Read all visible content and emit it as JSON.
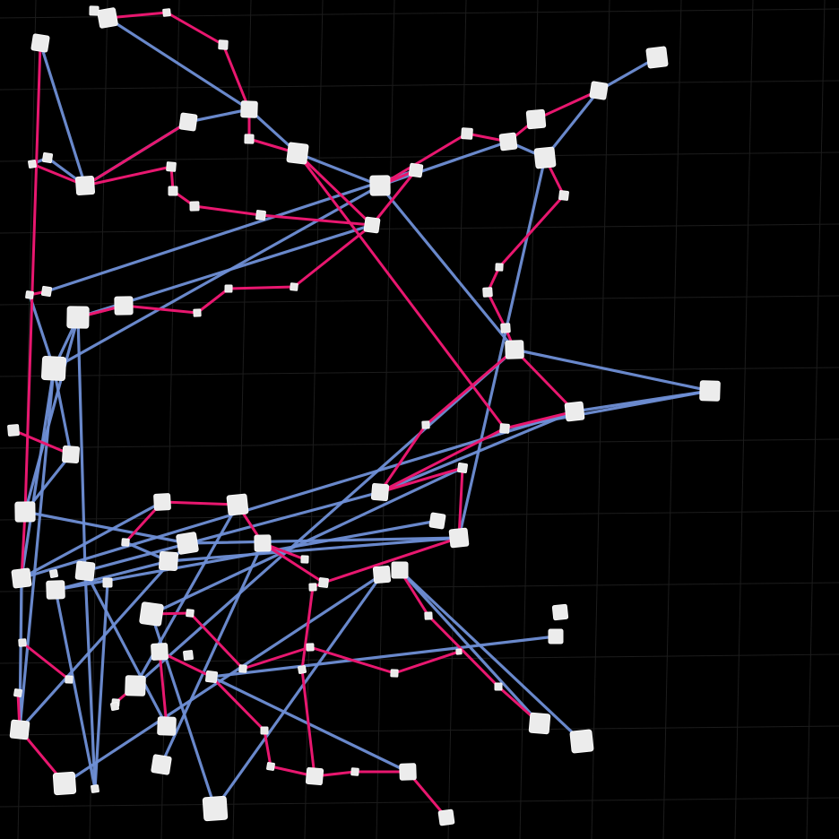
{
  "scene": {
    "background": "#000000",
    "grid_color": "#1c1c1c",
    "edge_colors": {
      "blue": "#6f8fd6",
      "pink": "#e8176f"
    },
    "node_color": "#e9e9e9",
    "graph_type": "3D force-directed network (partial view)"
  }
}
